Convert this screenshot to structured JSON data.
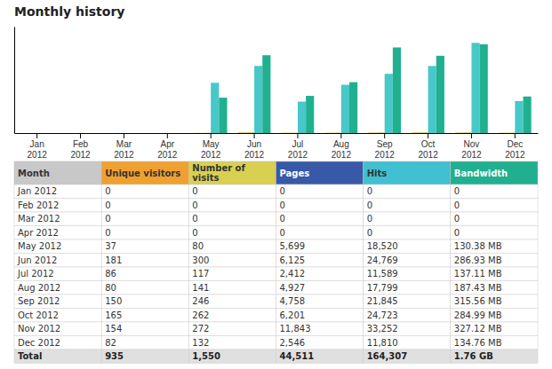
{
  "chart_data": {
    "type": "bar",
    "title": "Monthly history",
    "categories": [
      "Jan\n2012",
      "Feb\n2012",
      "Mar\n2012",
      "Apr\n2012",
      "May\n2012",
      "Jun\n2012",
      "Jul\n2012",
      "Aug\n2012",
      "Sep\n2012",
      "Oct\n2012",
      "Nov\n2012",
      "Dec\n2012"
    ],
    "series": [
      {
        "color": "#E8A020",
        "values": [
          0,
          0,
          0,
          0,
          37,
          181,
          86,
          80,
          150,
          165,
          154,
          82
        ]
      },
      {
        "color": "#D4C84A",
        "values": [
          0,
          0,
          0,
          0,
          80,
          300,
          117,
          141,
          246,
          262,
          272,
          132
        ]
      },
      {
        "color": "#48C8C8",
        "values": [
          0,
          0,
          0,
          0,
          18520,
          24769,
          11589,
          17799,
          21845,
          24723,
          33252,
          11810
        ]
      },
      {
        "color": "#20B090",
        "values": [
          0,
          0,
          0,
          0,
          13038,
          28693,
          13711,
          18743,
          31556,
          28499,
          32712,
          13476
        ]
      }
    ],
    "ylim": [
      0,
      39237.36
    ],
    "tick_labels": "x",
    "grid": false,
    "table": {
      "columns": [
        "Month",
        "Unique visitors",
        "Number of\nvisits",
        "Pages",
        "Hits",
        "Bandwidth"
      ],
      "header_colors": [
        "#C8C8C8",
        "#F0A030",
        "#D8D050",
        "#3858A8",
        "#40C0D0",
        "#20B090"
      ],
      "rows": [
        [
          "Jan 2012",
          "0",
          "0",
          "0",
          "0",
          "0"
        ],
        [
          "Feb 2012",
          "0",
          "0",
          "0",
          "0",
          "0"
        ],
        [
          "Mar 2012",
          "0",
          "0",
          "0",
          "0",
          "0"
        ],
        [
          "Apr 2012",
          "0",
          "0",
          "0",
          "0",
          "0"
        ],
        [
          "May 2012",
          "37",
          "80",
          "5,699",
          "18,520",
          "130.38 MB"
        ],
        [
          "Jun 2012",
          "181",
          "300",
          "6,125",
          "24,769",
          "286.93 MB"
        ],
        [
          "Jul 2012",
          "86",
          "117",
          "2,412",
          "11,589",
          "137.11 MB"
        ],
        [
          "Aug 2012",
          "80",
          "141",
          "4,927",
          "17,799",
          "187.43 MB"
        ],
        [
          "Sep 2012",
          "150",
          "246",
          "4,758",
          "21,845",
          "315.56 MB"
        ],
        [
          "Oct 2012",
          "165",
          "262",
          "6,201",
          "24,723",
          "284.99 MB"
        ],
        [
          "Nov 2012",
          "154",
          "272",
          "11,843",
          "33,252",
          "327.12 MB"
        ],
        [
          "Dec 2012",
          "82",
          "132",
          "2,546",
          "11,810",
          "134.76 MB"
        ],
        [
          "Total",
          "935",
          "1,550",
          "44,511",
          "164,307",
          "1.76 GB"
        ]
      ]
    }
  }
}
